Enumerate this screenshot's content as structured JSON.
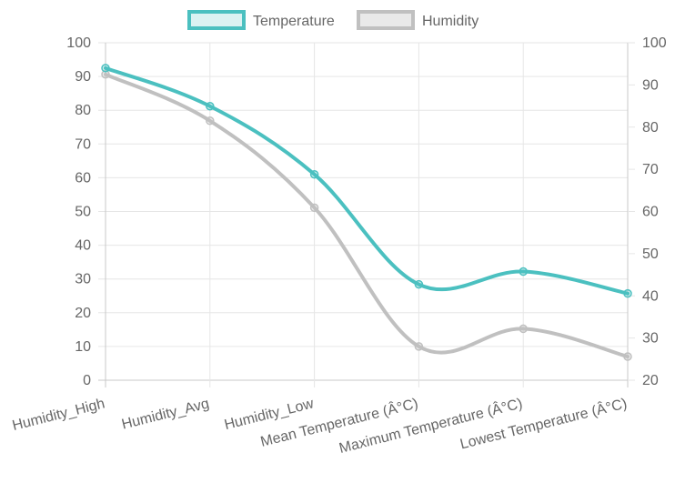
{
  "chart_data": {
    "type": "line",
    "categories": [
      "Humidity_High",
      "Humidity_Avg",
      "Humidity_Low",
      "Mean Temperature (Â°C)",
      "Maximum Temperature (Â°C)",
      "Lowest Temperature (Â°C)"
    ],
    "series": [
      {
        "name": "Temperature",
        "axis": "left",
        "color": "#4bc0c0",
        "values": [
          92.5,
          81.2,
          61.0,
          28.4,
          32.2,
          25.7
        ]
      },
      {
        "name": "Humidity",
        "axis": "right",
        "color": "#c0c0c0",
        "values": [
          92.5,
          81.5,
          60.9,
          28.0,
          32.2,
          25.6
        ]
      }
    ],
    "y_left": {
      "min": 0,
      "max": 100,
      "step": 10,
      "ticks": [
        "0",
        "10",
        "20",
        "30",
        "40",
        "50",
        "60",
        "70",
        "80",
        "90",
        "100"
      ]
    },
    "y_right": {
      "min": 20,
      "max": 100,
      "step": 10,
      "ticks": [
        "20",
        "30",
        "40",
        "50",
        "60",
        "70",
        "80",
        "90",
        "100"
      ]
    },
    "grid": true,
    "legend_position": "top"
  }
}
